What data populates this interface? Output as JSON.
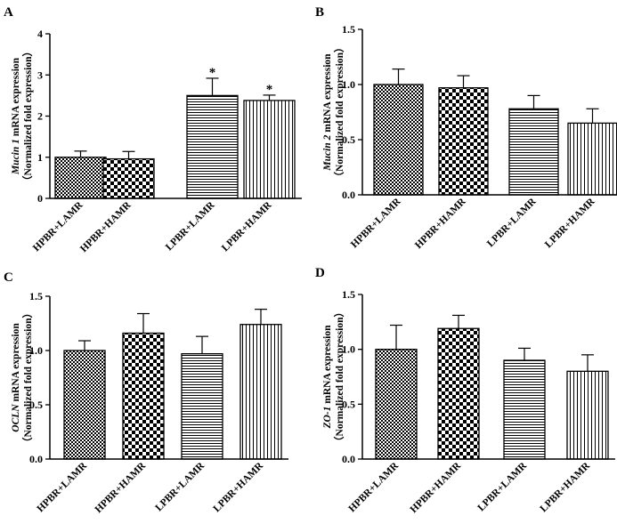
{
  "colors": {
    "axis": "#000000",
    "bar_stroke": "#000000",
    "background": "#ffffff"
  },
  "chart_data": [
    {
      "panel": "A",
      "type": "bar",
      "categories": [
        "HPBR+LAMR",
        "HPBR+HAMR",
        "LPBR+LAMR",
        "LPBR+HAMR"
      ],
      "values": [
        1.0,
        0.96,
        2.5,
        2.38
      ],
      "errors": [
        0.15,
        0.18,
        0.42,
        0.13
      ],
      "annotations": [
        "",
        "",
        "*",
        "*"
      ],
      "patterns": [
        "fine-check",
        "checker",
        "horizontal",
        "vertical"
      ],
      "ylabel_gene": "Mucin 1",
      "ylabel_rest": " mRNA expression",
      "ylabel_line2": "（Normalized fold expression）",
      "ylim": [
        0,
        4
      ],
      "yticks": [
        "0",
        "1",
        "2",
        "3",
        "4"
      ]
    },
    {
      "panel": "B",
      "type": "bar",
      "categories": [
        "HPBR+LAMR",
        "HPBR+HAMR",
        "LPBR+LAMR",
        "LPBR+HAMR"
      ],
      "values": [
        1.0,
        0.97,
        0.78,
        0.65
      ],
      "errors": [
        0.14,
        0.11,
        0.12,
        0.13
      ],
      "annotations": [
        "",
        "",
        "",
        ""
      ],
      "patterns": [
        "fine-check",
        "checker",
        "horizontal",
        "vertical"
      ],
      "ylabel_gene": "Mucin 2",
      "ylabel_rest": " mRNA expression",
      "ylabel_line2": "（Normalized fold expression）",
      "ylim": [
        0,
        1.5
      ],
      "yticks": [
        "0.0",
        "0.5",
        "1.0",
        "1.5"
      ]
    },
    {
      "panel": "C",
      "type": "bar",
      "categories": [
        "HPBR+LAMR",
        "HPBR+HAMR",
        "LPBR+LAMR",
        "LPBR+HAMR"
      ],
      "values": [
        1.0,
        1.16,
        0.97,
        1.24
      ],
      "errors": [
        0.09,
        0.18,
        0.16,
        0.14
      ],
      "annotations": [
        "",
        "",
        "",
        ""
      ],
      "patterns": [
        "fine-check",
        "checker",
        "horizontal",
        "vertical"
      ],
      "ylabel_gene": "OCLN",
      "ylabel_rest": " mRNA expression",
      "ylabel_line2": "（Normalized fold expression）",
      "ylim": [
        0,
        1.5
      ],
      "yticks": [
        "0.0",
        "0.5",
        "1.0",
        "1.5"
      ]
    },
    {
      "panel": "D",
      "type": "bar",
      "categories": [
        "HPBR+LAMR",
        "HPBR+HAMR",
        "LPBR+LAMR",
        "LPBR+HAMR"
      ],
      "values": [
        1.0,
        1.19,
        0.9,
        0.8
      ],
      "errors": [
        0.22,
        0.12,
        0.11,
        0.15
      ],
      "annotations": [
        "",
        "",
        "",
        ""
      ],
      "patterns": [
        "fine-check",
        "checker",
        "horizontal",
        "vertical"
      ],
      "ylabel_gene": "ZO-1",
      "ylabel_rest": " mRNA expression",
      "ylabel_line2": "（Normalized fold expression）",
      "ylim": [
        0,
        1.5
      ],
      "yticks": [
        "0.0",
        "0.5",
        "1.0",
        "1.5"
      ]
    }
  ]
}
